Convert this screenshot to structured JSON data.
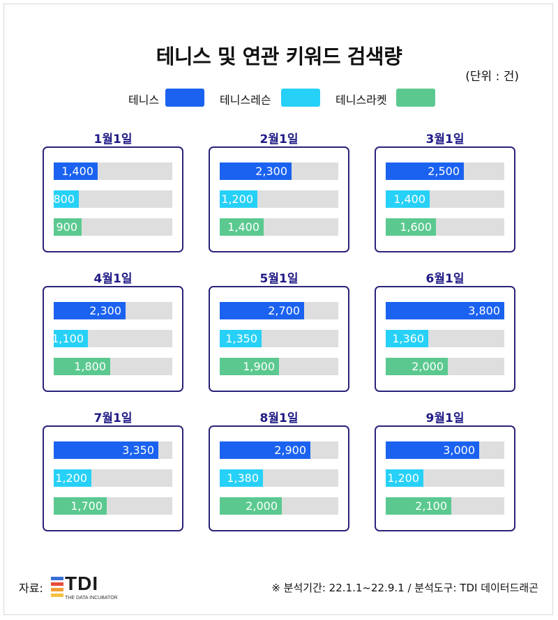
{
  "title": "테니스 및 연관 키워드 검색량",
  "unit": "(단위 : 건)",
  "colors": {
    "tennis": "#1b62f0",
    "tennis_lesson": "#27d0f6",
    "tennis_racket": "#5bc98f",
    "track": "#dedede",
    "panel_border": "#2a237a",
    "panel_title": "#1f1a85"
  },
  "legend": [
    {
      "label": "테니스",
      "color": "#1b62f0"
    },
    {
      "label": "테니스레슨",
      "color": "#27d0f6"
    },
    {
      "label": "테니스라켓",
      "color": "#5bc98f"
    }
  ],
  "chart_data": {
    "type": "bar",
    "title": "테니스 및 연관 키워드 검색량",
    "unit": "(단위 : 건)",
    "orientation": "horizontal",
    "max_value": 3800,
    "series_names": [
      "테니스",
      "테니스레슨",
      "테니스라켓"
    ],
    "panels": [
      {
        "label": "1월1일",
        "values": [
          1400,
          800,
          900
        ],
        "value_labels": [
          "1,400",
          "800",
          "900"
        ]
      },
      {
        "label": "2월1일",
        "values": [
          2300,
          1200,
          1400
        ],
        "value_labels": [
          "2,300",
          "1,200",
          "1,400"
        ]
      },
      {
        "label": "3월1일",
        "values": [
          2500,
          1400,
          1600
        ],
        "value_labels": [
          "2,500",
          "1,400",
          "1,600"
        ]
      },
      {
        "label": "4월1일",
        "values": [
          2300,
          1100,
          1800
        ],
        "value_labels": [
          "2,300",
          "1,100",
          "1,800"
        ]
      },
      {
        "label": "5월1일",
        "values": [
          2700,
          1350,
          1900
        ],
        "value_labels": [
          "2,700",
          "1,350",
          "1,900"
        ]
      },
      {
        "label": "6월1일",
        "values": [
          3800,
          1360,
          2000
        ],
        "value_labels": [
          "3,800",
          "1,360",
          "2,000"
        ]
      },
      {
        "label": "7월1일",
        "values": [
          3350,
          1200,
          1700
        ],
        "value_labels": [
          "3,350",
          "1,200",
          "1,700"
        ]
      },
      {
        "label": "8월1일",
        "values": [
          2900,
          1380,
          2000
        ],
        "value_labels": [
          "2,900",
          "1,380",
          "2,000"
        ]
      },
      {
        "label": "9월1일",
        "values": [
          3000,
          1200,
          2100
        ],
        "value_labels": [
          "3,000",
          "1,200",
          "2,100"
        ]
      }
    ]
  },
  "footer": {
    "source_label": "자료:",
    "logo_text": "TDI",
    "logo_subtext": "THE DATA INCUBATOR",
    "logo_colors": [
      "#3a6fd8",
      "#e84c3d",
      "#f39c34",
      "#f5c242"
    ],
    "note": "※ 분석기간: 22.1.1~22.9.1 / 분석도구: TDI 데이터드래곤"
  }
}
